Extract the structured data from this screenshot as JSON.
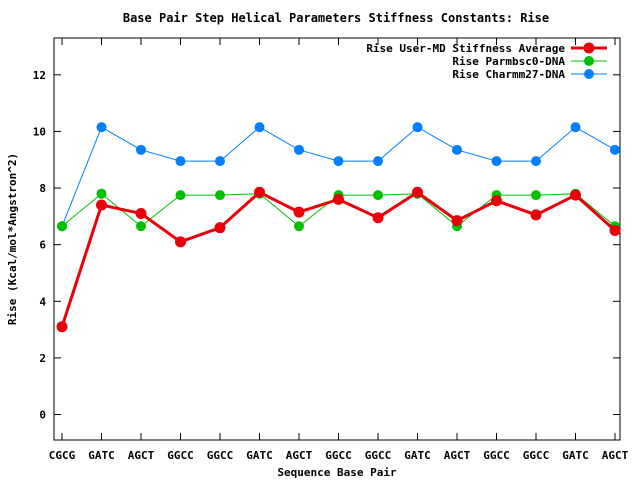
{
  "chart_data": {
    "type": "line",
    "title": "Base Pair Step Helical Parameters Stiffness Constants: Rise",
    "xlabel": "Sequence Base Pair",
    "ylabel": "Rise (Kcal/mol*Angstron^2)",
    "categories": [
      "CGCG",
      "GATC",
      "AGCT",
      "GGCC",
      "GGCC",
      "GATC",
      "AGCT",
      "GGCC",
      "GGCC",
      "GATC",
      "AGCT",
      "GGCC",
      "GGCC",
      "GATC",
      "AGCT"
    ],
    "ylim": [
      -0.9,
      13.3
    ],
    "yticks": [
      0,
      2,
      4,
      6,
      8,
      10,
      12
    ],
    "grid": false,
    "legend_position": "top-right",
    "series": [
      {
        "name": "Rise User-MD Stiffness Average",
        "color": "#e8000b",
        "values": [
          3.1,
          7.4,
          7.1,
          6.1,
          6.6,
          7.85,
          7.15,
          7.6,
          6.95,
          7.85,
          6.85,
          7.55,
          7.05,
          7.75,
          6.5
        ]
      },
      {
        "name": "Rise Parmbsc0-DNA",
        "color": "#00c000",
        "values": [
          6.65,
          7.8,
          6.65,
          7.75,
          7.75,
          7.8,
          6.65,
          7.75,
          7.75,
          7.8,
          6.65,
          7.75,
          7.75,
          7.8,
          6.65
        ]
      },
      {
        "name": "Rise Charmm27-DNA",
        "color": "#0080ff",
        "values": [
          6.65,
          10.15,
          9.35,
          8.95,
          8.95,
          10.15,
          9.35,
          8.95,
          8.95,
          10.15,
          9.35,
          8.95,
          8.95,
          10.15,
          9.35
        ]
      }
    ]
  }
}
